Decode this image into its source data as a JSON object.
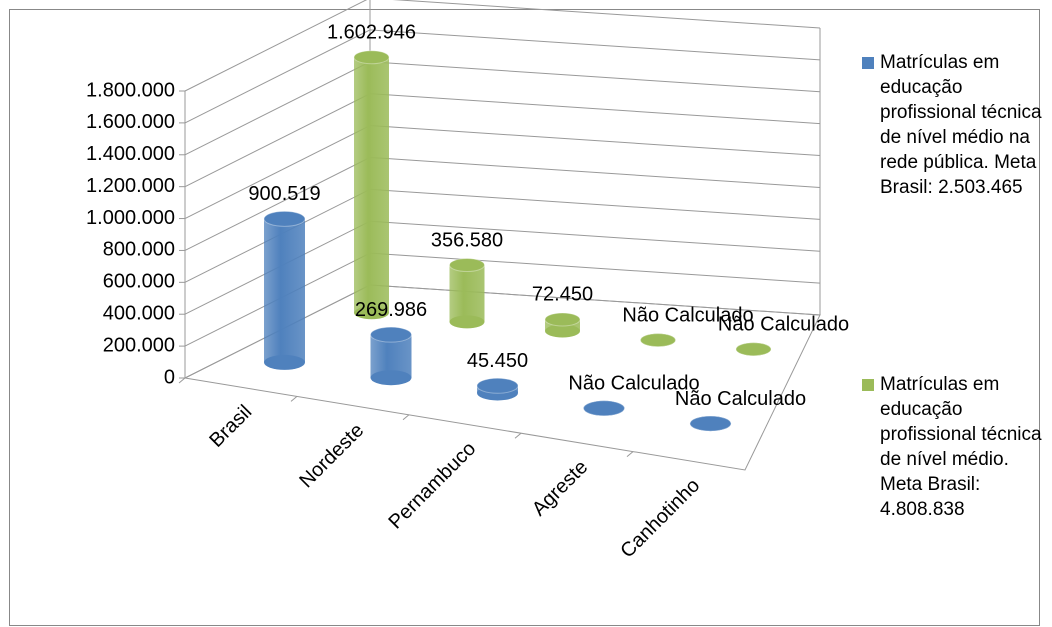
{
  "chart_data": {
    "type": "bar3d",
    "categories": [
      "Brasil",
      "Nordeste",
      "Pernambuco",
      "Agreste",
      "Canhotinho"
    ],
    "series": [
      {
        "name": "Matrículas em educação profissional técnica de nível médio na rede pública. Meta Brasil: 2.503.465",
        "color": "#4f81bd",
        "values": [
          900519,
          269986,
          45450,
          null,
          null
        ],
        "value_labels": [
          "900.519",
          "269.986",
          "45.450",
          "Não Calculado",
          "Não Calculado"
        ]
      },
      {
        "name": "Matrículas em educação profissional técnica de nível médio. Meta Brasil: 4.808.838",
        "color": "#9bbb59",
        "values": [
          1602946,
          356580,
          72450,
          null,
          null
        ],
        "value_labels": [
          "1.602.946",
          "356.580",
          "72.450",
          "Não Calculado",
          "Não Calculado"
        ]
      }
    ],
    "ylim": [
      0,
      1800000
    ],
    "yticks": [
      0,
      {
        "value": 200000,
        "label": "200.000"
      },
      {
        "value": 400000,
        "label": "400.000"
      },
      {
        "value": 600000,
        "label": "600.000"
      },
      {
        "value": 800000,
        "label": "800.000"
      },
      {
        "value": 1000000,
        "label": "1.000.000"
      },
      {
        "value": 1200000,
        "label": "1.200.000"
      },
      {
        "value": 1400000,
        "label": "1.400.000"
      },
      {
        "value": 1600000,
        "label": "1.600.000"
      },
      {
        "value": 1800000,
        "label": "1.800.000"
      }
    ],
    "grid": true,
    "legend": "right"
  }
}
